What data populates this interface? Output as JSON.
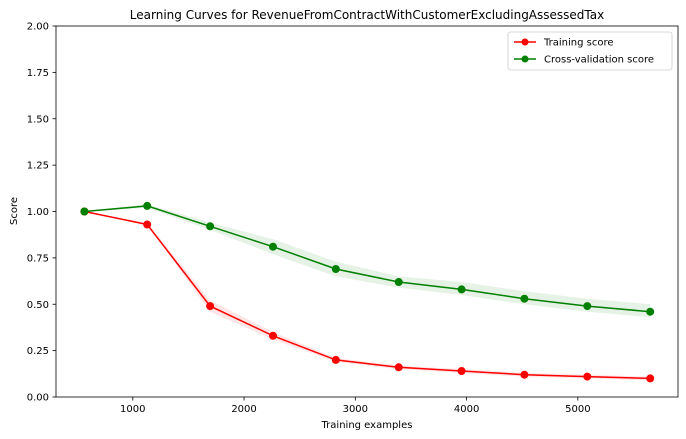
{
  "chart_data": {
    "type": "line",
    "title": "Learning Curves for RevenueFromContractWithCustomerExcludingAssessedTax",
    "xlabel": "Training examples",
    "ylabel": "Score",
    "xlim": [
      310,
      5900
    ],
    "ylim": [
      0,
      2.0
    ],
    "xticks": [
      1000,
      2000,
      3000,
      4000,
      5000
    ],
    "xtick_labels": [
      "1000",
      "2000",
      "3000",
      "4000",
      "5000"
    ],
    "yticks": [
      0,
      0.25,
      0.5,
      0.75,
      1.0,
      1.25,
      1.5,
      1.75,
      2.0
    ],
    "ytick_labels": [
      "0.00",
      "0.25",
      "0.50",
      "0.75",
      "1.00",
      "1.25",
      "1.50",
      "1.75",
      "2.00"
    ],
    "grid": false,
    "legend_position": "top-right",
    "x": [
      565,
      1130,
      1695,
      2260,
      2825,
      3390,
      3955,
      4520,
      5085,
      5650
    ],
    "series": [
      {
        "name": "Training score",
        "color": "#ff0000",
        "values": [
          1.0,
          0.93,
          0.49,
          0.33,
          0.2,
          0.16,
          0.14,
          0.12,
          0.11,
          0.1
        ],
        "band_lower": [
          1.0,
          0.93,
          0.46,
          0.31,
          0.19,
          0.15,
          0.13,
          0.11,
          0.1,
          0.09
        ],
        "band_upper": [
          1.0,
          0.94,
          0.52,
          0.35,
          0.21,
          0.17,
          0.15,
          0.13,
          0.12,
          0.11
        ]
      },
      {
        "name": "Cross-validation score",
        "color": "#008000",
        "values": [
          1.0,
          1.03,
          0.92,
          0.81,
          0.69,
          0.62,
          0.58,
          0.53,
          0.49,
          0.46
        ],
        "band_lower": [
          1.0,
          1.02,
          0.9,
          0.77,
          0.65,
          0.59,
          0.55,
          0.5,
          0.46,
          0.43
        ],
        "band_upper": [
          1.0,
          1.04,
          0.94,
          0.85,
          0.73,
          0.65,
          0.62,
          0.57,
          0.53,
          0.5
        ]
      }
    ]
  }
}
